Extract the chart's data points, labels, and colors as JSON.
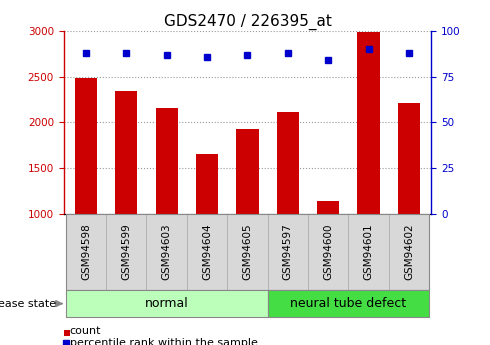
{
  "title": "GDS2470 / 226395_at",
  "samples": [
    "GSM94598",
    "GSM94599",
    "GSM94603",
    "GSM94604",
    "GSM94605",
    "GSM94597",
    "GSM94600",
    "GSM94601",
    "GSM94602"
  ],
  "counts": [
    2490,
    2340,
    2160,
    1650,
    1930,
    2120,
    1140,
    2990,
    2210
  ],
  "percentiles": [
    88,
    88,
    87,
    86,
    87,
    88,
    84,
    90,
    88
  ],
  "ylim_left": [
    1000,
    3000
  ],
  "ylim_right": [
    0,
    100
  ],
  "yticks_left": [
    1000,
    1500,
    2000,
    2500,
    3000
  ],
  "yticks_right": [
    0,
    25,
    50,
    75,
    100
  ],
  "groups": [
    {
      "label": "normal",
      "indices": [
        0,
        1,
        2,
        3,
        4
      ],
      "color": "#bbffbb"
    },
    {
      "label": "neural tube defect",
      "indices": [
        5,
        6,
        7,
        8
      ],
      "color": "#44dd44"
    }
  ],
  "bar_color": "#cc0000",
  "dot_color": "#0000cc",
  "bar_width": 0.55,
  "title_fontsize": 11,
  "tick_fontsize": 7.5,
  "label_fontsize": 8,
  "group_label_fontsize": 9,
  "legend_fontsize": 8,
  "grid_color": "#999999",
  "bg_color": "#ffffff",
  "tick_color_left": "#cc0000",
  "tick_color_right": "#0000cc",
  "disease_state_label": "disease state",
  "legend_items": [
    "count",
    "percentile rank within the sample"
  ],
  "sample_box_color": "#d8d8d8"
}
